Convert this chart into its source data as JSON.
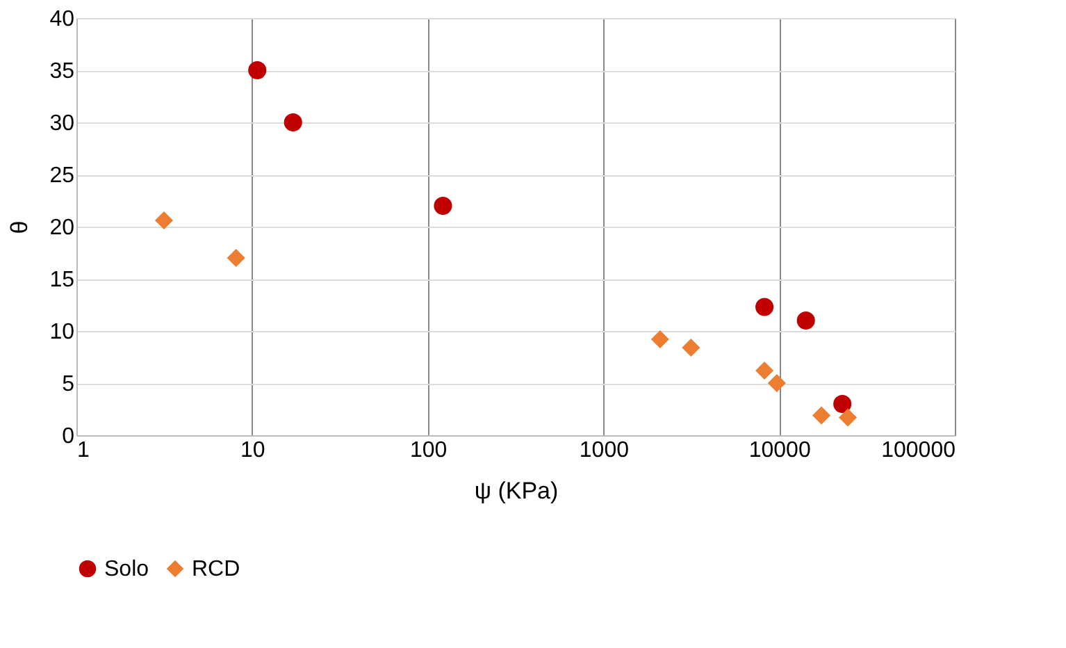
{
  "chart_data": {
    "type": "scatter",
    "xlabel": "ψ (KPa)",
    "ylabel": "θ",
    "log": "x",
    "xlim": [
      1,
      100000
    ],
    "xticks": [
      1,
      10,
      100,
      1000,
      10000,
      100000
    ],
    "ylim": [
      0,
      40
    ],
    "yticks": [
      0,
      5,
      10,
      15,
      20,
      25,
      30,
      35,
      40
    ],
    "grid": true,
    "legend": "bottom",
    "series": [
      {
        "name": "Solo",
        "color": "#c00000",
        "marker": "circle",
        "x": [
          10.7,
          17.1,
          122,
          8250,
          14200,
          22900
        ],
        "values": [
          35,
          30,
          22,
          12.3,
          11,
          3
        ]
      },
      {
        "name": "RCD",
        "color": "#ed7d31",
        "marker": "diamond",
        "x": [
          3.15,
          8.1,
          2100,
          3150,
          8250,
          9700,
          17400,
          24600
        ],
        "values": [
          20.6,
          17,
          9.2,
          8.4,
          6.2,
          5,
          1.9,
          1.7
        ]
      }
    ]
  }
}
